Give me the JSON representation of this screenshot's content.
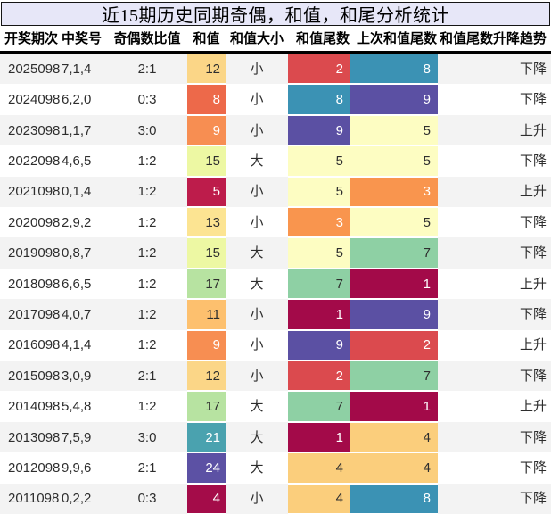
{
  "title": "近15期历史同期奇偶，和值，和尾分析统计",
  "columns": [
    "开奖期次",
    "中奖号",
    "奇偶数比值",
    "和值",
    "和值大小",
    "和值尾数",
    "上次和值尾数",
    "和值尾数升降趋势"
  ],
  "rows": [
    {
      "period": "2025098",
      "number": "7,1,4",
      "ratio": "2:1",
      "sum": "12",
      "sum_bg": "#fbd687",
      "sum_fg": "#2e2e2e",
      "size": "小",
      "tail": "2",
      "tail_bg": "#db4a4e",
      "tail_fg": "#ffffff",
      "prev": "8",
      "prev_bg": "#3b92b4",
      "prev_fg": "#ffffff",
      "trend": "下降"
    },
    {
      "period": "2024098",
      "number": "6,2,0",
      "ratio": "0:3",
      "sum": "8",
      "sum_bg": "#ed694a",
      "sum_fg": "#ffffff",
      "size": "小",
      "tail": "8",
      "tail_bg": "#3b92b4",
      "tail_fg": "#ffffff",
      "prev": "9",
      "prev_bg": "#5b50a3",
      "prev_fg": "#ffffff",
      "trend": "下降"
    },
    {
      "period": "2023098",
      "number": "1,1,7",
      "ratio": "3:0",
      "sum": "9",
      "sum_bg": "#f78e52",
      "sum_fg": "#ffffff",
      "size": "小",
      "tail": "9",
      "tail_bg": "#5b50a3",
      "tail_fg": "#ffffff",
      "prev": "5",
      "prev_bg": "#fdfdc2",
      "prev_fg": "#2e2e2e",
      "trend": "上升"
    },
    {
      "period": "2022098",
      "number": "4,6,5",
      "ratio": "1:2",
      "sum": "15",
      "sum_bg": "#edf8a3",
      "sum_fg": "#2e2e2e",
      "size": "大",
      "tail": "5",
      "tail_bg": "#fdfdc2",
      "tail_fg": "#2e2e2e",
      "prev": "5",
      "prev_bg": "#fdfdc2",
      "prev_fg": "#2e2e2e",
      "trend": "下降"
    },
    {
      "period": "2021098",
      "number": "0,1,4",
      "ratio": "1:2",
      "sum": "5",
      "sum_bg": "#bd1c4b",
      "sum_fg": "#ffffff",
      "size": "小",
      "tail": "5",
      "tail_bg": "#fdfdc2",
      "tail_fg": "#2e2e2e",
      "prev": "3",
      "prev_bg": "#f9954e",
      "prev_fg": "#ffffff",
      "trend": "上升"
    },
    {
      "period": "2020098",
      "number": "2,9,2",
      "ratio": "1:2",
      "sum": "13",
      "sum_bg": "#fce492",
      "sum_fg": "#2e2e2e",
      "size": "小",
      "tail": "3",
      "tail_bg": "#f9954e",
      "tail_fg": "#ffffff",
      "prev": "5",
      "prev_bg": "#fdfdc2",
      "prev_fg": "#2e2e2e",
      "trend": "下降"
    },
    {
      "period": "2019098",
      "number": "0,8,7",
      "ratio": "1:2",
      "sum": "15",
      "sum_bg": "#edf8a3",
      "sum_fg": "#2e2e2e",
      "size": "大",
      "tail": "5",
      "tail_bg": "#fdfdc2",
      "tail_fg": "#2e2e2e",
      "prev": "7",
      "prev_bg": "#8ed0a4",
      "prev_fg": "#2e2e2e",
      "trend": "下降"
    },
    {
      "period": "2018098",
      "number": "6,6,5",
      "ratio": "1:2",
      "sum": "17",
      "sum_bg": "#b7e3a1",
      "sum_fg": "#2e2e2e",
      "size": "大",
      "tail": "7",
      "tail_bg": "#8ed0a4",
      "tail_fg": "#2e2e2e",
      "prev": "1",
      "prev_bg": "#a30a49",
      "prev_fg": "#ffffff",
      "trend": "上升"
    },
    {
      "period": "2017098",
      "number": "4,0,7",
      "ratio": "1:2",
      "sum": "11",
      "sum_bg": "#fdc06e",
      "sum_fg": "#2e2e2e",
      "size": "小",
      "tail": "1",
      "tail_bg": "#a30a49",
      "tail_fg": "#ffffff",
      "prev": "9",
      "prev_bg": "#5b50a3",
      "prev_fg": "#ffffff",
      "trend": "下降"
    },
    {
      "period": "2016098",
      "number": "4,1,4",
      "ratio": "1:2",
      "sum": "9",
      "sum_bg": "#f78e52",
      "sum_fg": "#ffffff",
      "size": "小",
      "tail": "9",
      "tail_bg": "#5b50a3",
      "tail_fg": "#ffffff",
      "prev": "2",
      "prev_bg": "#db4a4e",
      "prev_fg": "#ffffff",
      "trend": "上升"
    },
    {
      "period": "2015098",
      "number": "3,0,9",
      "ratio": "2:1",
      "sum": "12",
      "sum_bg": "#fbd687",
      "sum_fg": "#2e2e2e",
      "size": "小",
      "tail": "2",
      "tail_bg": "#db4a4e",
      "tail_fg": "#ffffff",
      "prev": "7",
      "prev_bg": "#8ed0a4",
      "prev_fg": "#2e2e2e",
      "trend": "下降"
    },
    {
      "period": "2014098",
      "number": "5,4,8",
      "ratio": "1:2",
      "sum": "17",
      "sum_bg": "#b7e3a1",
      "sum_fg": "#2e2e2e",
      "size": "大",
      "tail": "7",
      "tail_bg": "#8ed0a4",
      "tail_fg": "#2e2e2e",
      "prev": "1",
      "prev_bg": "#a30a49",
      "prev_fg": "#ffffff",
      "trend": "上升"
    },
    {
      "period": "2013098",
      "number": "7,5,9",
      "ratio": "3:0",
      "sum": "21",
      "sum_bg": "#4aa2af",
      "sum_fg": "#ffffff",
      "size": "大",
      "tail": "1",
      "tail_bg": "#a30a49",
      "tail_fg": "#ffffff",
      "prev": "4",
      "prev_bg": "#fbce7c",
      "prev_fg": "#2e2e2e",
      "trend": "下降"
    },
    {
      "period": "2012098",
      "number": "9,9,6",
      "ratio": "2:1",
      "sum": "24",
      "sum_bg": "#5c51a4",
      "sum_fg": "#ffffff",
      "size": "大",
      "tail": "4",
      "tail_bg": "#fbce7c",
      "tail_fg": "#2e2e2e",
      "prev": "4",
      "prev_bg": "#fbce7c",
      "prev_fg": "#2e2e2e",
      "trend": "下降"
    },
    {
      "period": "2011098",
      "number": "0,2,2",
      "ratio": "0:3",
      "sum": "4",
      "sum_bg": "#a40c49",
      "sum_fg": "#ffffff",
      "size": "小",
      "tail": "4",
      "tail_bg": "#fbce7c",
      "tail_fg": "#2e2e2e",
      "prev": "8",
      "prev_bg": "#3b92b4",
      "prev_fg": "#ffffff",
      "trend": "下降"
    }
  ],
  "colors": {
    "title_bar_bg": "#e7e7f8",
    "title_bar_border": "#151515",
    "row_alt_bg": "#f3f3f3",
    "row_bg": "#ffffff",
    "header_rule": "#000000"
  },
  "chart_data": {
    "type": "table",
    "title": "近15期历史同期奇偶，和值，和尾分析统计",
    "columns": [
      "开奖期次",
      "中奖号",
      "奇偶数比值",
      "和值",
      "和值大小",
      "和值尾数",
      "上次和值尾数",
      "和值尾数升降趋势"
    ],
    "rows": [
      [
        "2025098",
        "7,1,4",
        "2:1",
        12,
        "小",
        2,
        8,
        "下降"
      ],
      [
        "2024098",
        "6,2,0",
        "0:3",
        8,
        "小",
        8,
        9,
        "下降"
      ],
      [
        "2023098",
        "1,1,7",
        "3:0",
        9,
        "小",
        9,
        5,
        "上升"
      ],
      [
        "2022098",
        "4,6,5",
        "1:2",
        15,
        "大",
        5,
        5,
        "下降"
      ],
      [
        "2021098",
        "0,1,4",
        "1:2",
        5,
        "小",
        5,
        3,
        "上升"
      ],
      [
        "2020098",
        "2,9,2",
        "1:2",
        13,
        "小",
        3,
        5,
        "下降"
      ],
      [
        "2019098",
        "0,8,7",
        "1:2",
        15,
        "大",
        5,
        7,
        "下降"
      ],
      [
        "2018098",
        "6,6,5",
        "1:2",
        17,
        "大",
        7,
        1,
        "上升"
      ],
      [
        "2017098",
        "4,0,7",
        "1:2",
        11,
        "小",
        1,
        9,
        "下降"
      ],
      [
        "2016098",
        "4,1,4",
        "1:2",
        9,
        "小",
        9,
        2,
        "上升"
      ],
      [
        "2015098",
        "3,0,9",
        "2:1",
        12,
        "小",
        2,
        7,
        "下降"
      ],
      [
        "2014098",
        "5,4,8",
        "1:2",
        17,
        "大",
        7,
        1,
        "上升"
      ],
      [
        "2013098",
        "7,5,9",
        "3:0",
        21,
        "大",
        1,
        4,
        "下降"
      ],
      [
        "2012098",
        "9,9,6",
        "2:1",
        24,
        "大",
        4,
        4,
        "下降"
      ],
      [
        "2011098",
        "0,2,2",
        "0:3",
        4,
        "小",
        4,
        8,
        "下降"
      ]
    ],
    "legend_position": "none",
    "grid": false,
    "colormap": "spectral-heatmap on 和值 / 和值尾数 / 上次和值尾数 columns"
  }
}
